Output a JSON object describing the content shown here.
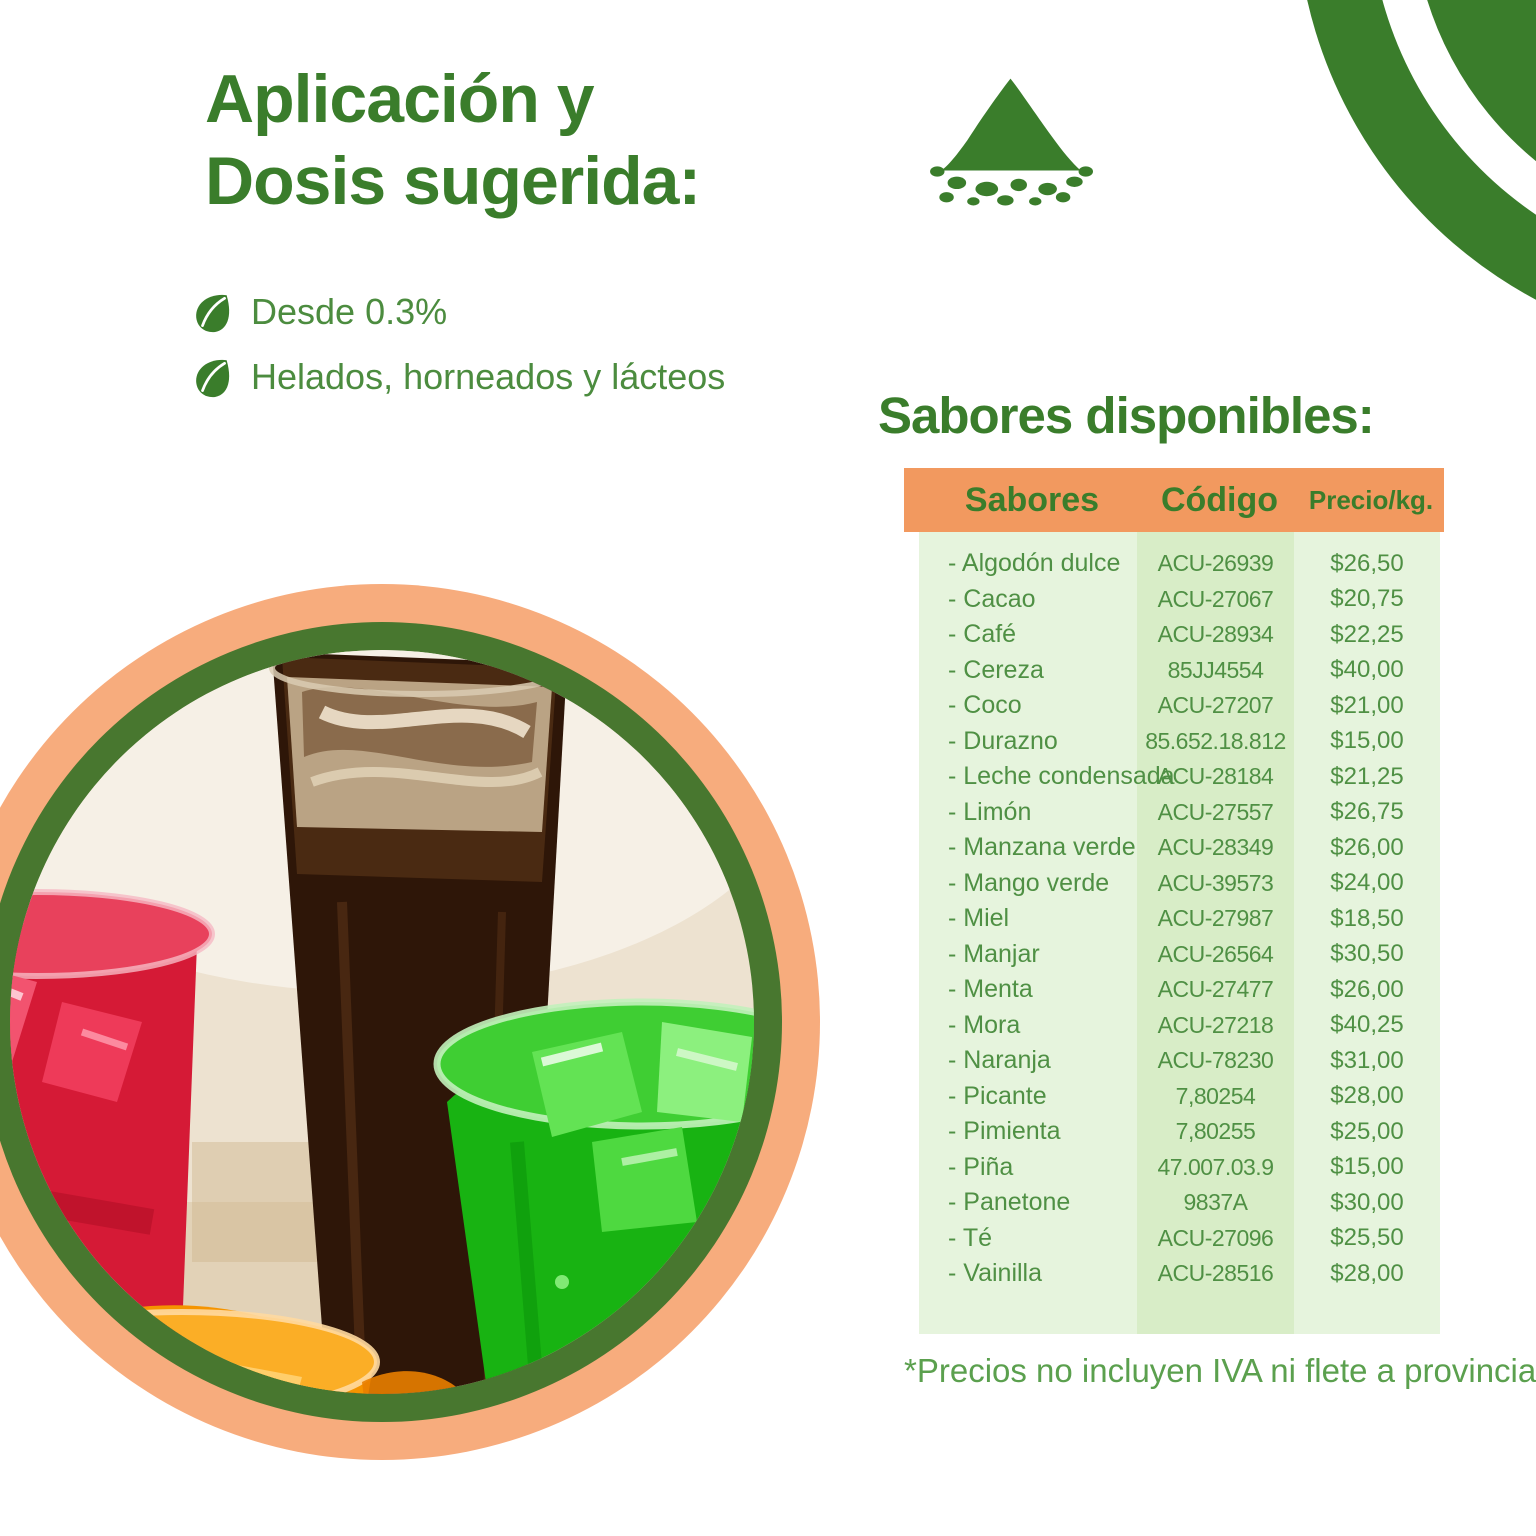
{
  "header": {
    "title_line1": "Aplicación y",
    "title_line2": "Dosis sugerida:"
  },
  "bullets": [
    {
      "label": "Desde 0.3%"
    },
    {
      "label": "Helados, horneados y lácteos"
    }
  ],
  "flavors_section": {
    "heading": "Sabores disponibles:",
    "footnote": "*Precios no incluyen IVA ni flete a provincia",
    "table": {
      "headers": [
        "Sabores",
        "Código",
        "Precio/kg."
      ],
      "rows": [
        [
          "- Algodón dulce",
          "ACU-26939",
          "$26,50"
        ],
        [
          "- Cacao",
          "ACU-27067",
          "$20,75"
        ],
        [
          "- Café",
          "ACU-28934",
          "$22,25"
        ],
        [
          "- Cereza",
          "85JJ4554",
          "$40,00"
        ],
        [
          "- Coco",
          "ACU-27207",
          "$21,00"
        ],
        [
          "- Durazno",
          "85.652.18.812",
          "$15,00"
        ],
        [
          "- Leche condensada",
          "ACU-28184",
          "$21,25"
        ],
        [
          "- Limón",
          "ACU-27557",
          "$26,75"
        ],
        [
          "- Manzana verde",
          "ACU-28349",
          "$26,00"
        ],
        [
          "- Mango verde",
          "ACU-39573",
          "$24,00"
        ],
        [
          "- Miel",
          "ACU-27987",
          "$18,50"
        ],
        [
          "- Manjar",
          "ACU-26564",
          "$30,50"
        ],
        [
          "- Menta",
          "ACU-27477",
          "$26,00"
        ],
        [
          "- Mora",
          "ACU-27218",
          "$40,25"
        ],
        [
          "- Naranja",
          "ACU-78230",
          "$31,00"
        ],
        [
          "- Picante",
          "7,80254",
          "$28,00"
        ],
        [
          "- Pimienta",
          "7,80255",
          "$25,00"
        ],
        [
          "- Piña",
          "47.007.03.9",
          "$15,00"
        ],
        [
          "- Panetone",
          "9837A",
          "$30,00"
        ],
        [
          "- Té",
          "ACU-27096",
          "$25,50"
        ],
        [
          "- Vainilla",
          "ACU-28516",
          "$28,00"
        ]
      ]
    }
  },
  "icons": {
    "powder_pile": "powder-pile-icon",
    "leaf_bullet": "leaf-bullet-icon",
    "corner_arcs": "corner-arcs-decoration",
    "drinks_photo": "drinks-photo"
  },
  "colors": {
    "brand_green": "#3A7D2B",
    "text_green": "#4F9044",
    "footnote_green": "#5BA04E",
    "header_orange": "#F2995F",
    "ring_orange": "#F7AC7D",
    "ring_green": "#48772F",
    "column_light_green": "#E6F4DD",
    "column_mid_green": "#D8EDC7"
  }
}
